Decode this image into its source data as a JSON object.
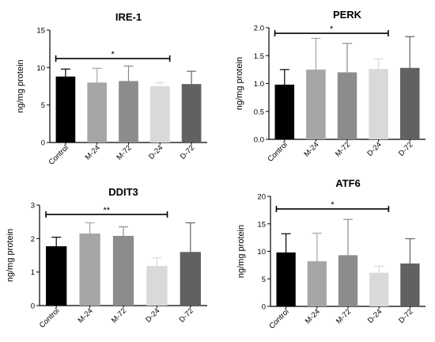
{
  "chart_data": [
    {
      "type": "bar",
      "title": "IRE-1",
      "ylabel": "ng/mg protein",
      "categories": [
        "Control",
        "M-24",
        "M-72",
        "D-24",
        "D-72"
      ],
      "values": [
        8.8,
        8.0,
        8.2,
        7.5,
        7.8
      ],
      "errors": [
        1.0,
        1.9,
        2.0,
        0.5,
        1.7
      ],
      "colors": [
        "#000000",
        "#a6a6a6",
        "#8c8c8c",
        "#d9d9d9",
        "#616161"
      ],
      "ylim": [
        0,
        15
      ],
      "yticks": [
        "0",
        "5",
        "10",
        "15"
      ],
      "significance": {
        "from": "Control",
        "to": "D-24",
        "y": 11.2,
        "label": "*"
      }
    },
    {
      "type": "bar",
      "title": "PERK",
      "ylabel": "ng/mg protein",
      "categories": [
        "Control",
        "M-24",
        "M-72",
        "D-24",
        "D-72"
      ],
      "values": [
        0.98,
        1.25,
        1.2,
        1.26,
        1.28
      ],
      "errors": [
        0.27,
        0.56,
        0.52,
        0.18,
        0.56
      ],
      "colors": [
        "#000000",
        "#a6a6a6",
        "#8c8c8c",
        "#d9d9d9",
        "#616161"
      ],
      "ylim": [
        0,
        2.0
      ],
      "yticks": [
        "0.0",
        "0.5",
        "1.0",
        "1.5",
        "2.0"
      ],
      "significance": {
        "from": "Control",
        "to": "D-24",
        "y": 1.9,
        "label": "*"
      }
    },
    {
      "type": "bar",
      "title": "DDIT3",
      "ylabel": "ng/mg protein",
      "categories": [
        "Control",
        "M-24",
        "M-72",
        "D-24",
        "D-72"
      ],
      "values": [
        1.77,
        2.15,
        2.08,
        1.18,
        1.6
      ],
      "errors": [
        0.27,
        0.32,
        0.27,
        0.24,
        0.87
      ],
      "colors": [
        "#000000",
        "#a6a6a6",
        "#8c8c8c",
        "#d9d9d9",
        "#616161"
      ],
      "ylim": [
        0,
        3
      ],
      "yticks": [
        "0",
        "1",
        "2",
        "3"
      ],
      "significance": {
        "from": "Control",
        "to": "D-24",
        "y": 2.72,
        "label": "**"
      }
    },
    {
      "type": "bar",
      "title": "ATF6",
      "ylabel": "ng/mg protein",
      "categories": [
        "Control",
        "M-24",
        "M-72",
        "D-24",
        "D-72"
      ],
      "values": [
        9.8,
        8.2,
        9.3,
        6.1,
        7.8
      ],
      "errors": [
        3.4,
        5.1,
        6.5,
        1.2,
        4.5
      ],
      "colors": [
        "#000000",
        "#a6a6a6",
        "#8c8c8c",
        "#d9d9d9",
        "#616161"
      ],
      "ylim": [
        0,
        20
      ],
      "yticks": [
        "0",
        "5",
        "10",
        "15",
        "20"
      ],
      "significance": {
        "from": "Control",
        "to": "D-24",
        "y": 17.7,
        "label": "*"
      }
    }
  ]
}
